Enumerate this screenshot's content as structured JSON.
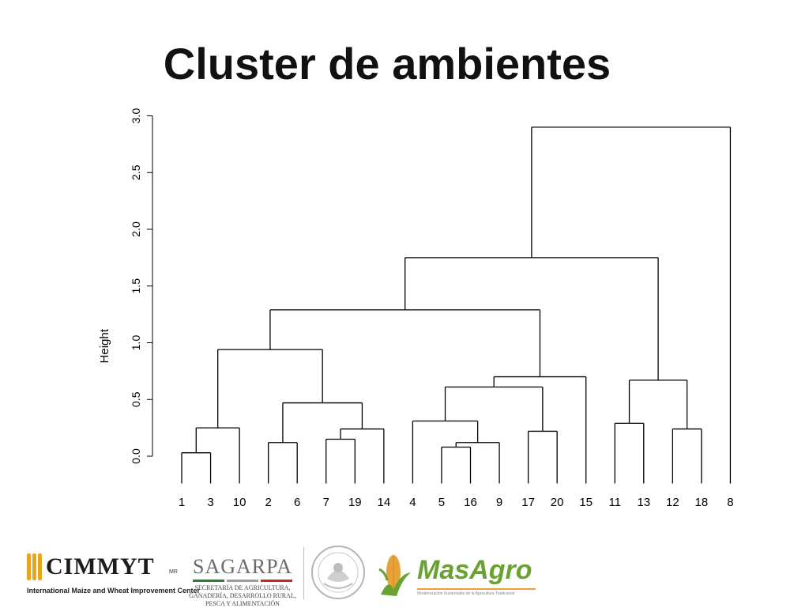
{
  "slide": {
    "title": "Cluster de ambientes"
  },
  "chart_data": {
    "type": "dendrogram",
    "ylabel": "Height",
    "ylim": [
      0,
      3
    ],
    "yticks": [
      "0.0",
      "0.5",
      "1.0",
      "1.5",
      "2.0",
      "2.5",
      "3.0"
    ],
    "ytick_values": [
      0,
      0.5,
      1.0,
      1.5,
      2.0,
      2.5,
      3.0
    ],
    "leaf_order": [
      "1",
      "3",
      "10",
      "2",
      "6",
      "7",
      "19",
      "14",
      "4",
      "5",
      "16",
      "9",
      "17",
      "20",
      "15",
      "11",
      "13",
      "12",
      "18",
      "8"
    ],
    "leaf_bottom": -0.24,
    "merges": [
      {
        "left": "1",
        "right": "3",
        "height": 0.03
      },
      {
        "left": "5",
        "right": "16",
        "height": 0.08
      },
      {
        "left": "2",
        "right": "6",
        "height": 0.12
      },
      {
        "left": "9",
        "right": "(5,16)",
        "height": 0.12
      },
      {
        "left": "7",
        "right": "19",
        "height": 0.15
      },
      {
        "left": "17",
        "right": "20",
        "height": 0.22
      },
      {
        "left": "(7,19)",
        "right": "14",
        "height": 0.24
      },
      {
        "left": "12",
        "right": "18",
        "height": 0.24
      },
      {
        "left": "(1,3)",
        "right": "10",
        "height": 0.25
      },
      {
        "left": "11",
        "right": "13",
        "height": 0.29
      },
      {
        "left": "4",
        "right": "((5,16),9)",
        "height": 0.31
      },
      {
        "left": "(2,6)",
        "right": "((7,19),14)",
        "height": 0.47
      },
      {
        "left": "(4,((5,16),9))",
        "right": "(17,20)",
        "height": 0.61
      },
      {
        "left": "(11,13)",
        "right": "(12,18)",
        "height": 0.67
      },
      {
        "left": "((4,((5,16),9)),(17,20))",
        "right": "15",
        "height": 0.7
      },
      {
        "left": "((1,3),10)",
        "right": "((2,6),((7,19),14))",
        "height": 0.94
      },
      {
        "left": "(((1,3),10),((2,6),((7,19),14)))",
        "right": "(((4,((5,16),9)),(17,20)),15)",
        "height": 1.29
      },
      {
        "left": "(((1,3),10),...,15)",
        "right": "((11,13),(12,18))",
        "height": 1.75
      },
      {
        "left": "(...,((11,13),(12,18)))",
        "right": "8",
        "height": 2.9
      }
    ]
  },
  "logos": {
    "cimmyt": {
      "name": "CIMMYT",
      "mark": "MR",
      "subtitle": "International Maize and Wheat Improvement Center",
      "color": "#e8a51d"
    },
    "sagarpa": {
      "name": "SAGARPA",
      "subtitle": "SECRETARÍA DE AGRICULTURA, GANADERÍA, DESARROLLO RURAL, PESCA Y ALIMENTACIÓN",
      "bar_colors": [
        "#2e7d32",
        "#9e9e9e",
        "#c62828"
      ]
    },
    "seal": {
      "ring_text": "ESTADOS UNIDOS MEXICANOS",
      "icon": "mexican-coat-of-arms-seal"
    },
    "masagro": {
      "name": "MasAgro",
      "subtitle": "Modernización Sustentable de la Agricultura Tradicional",
      "color": "#6aa232",
      "accent": "#e7a23a"
    }
  }
}
